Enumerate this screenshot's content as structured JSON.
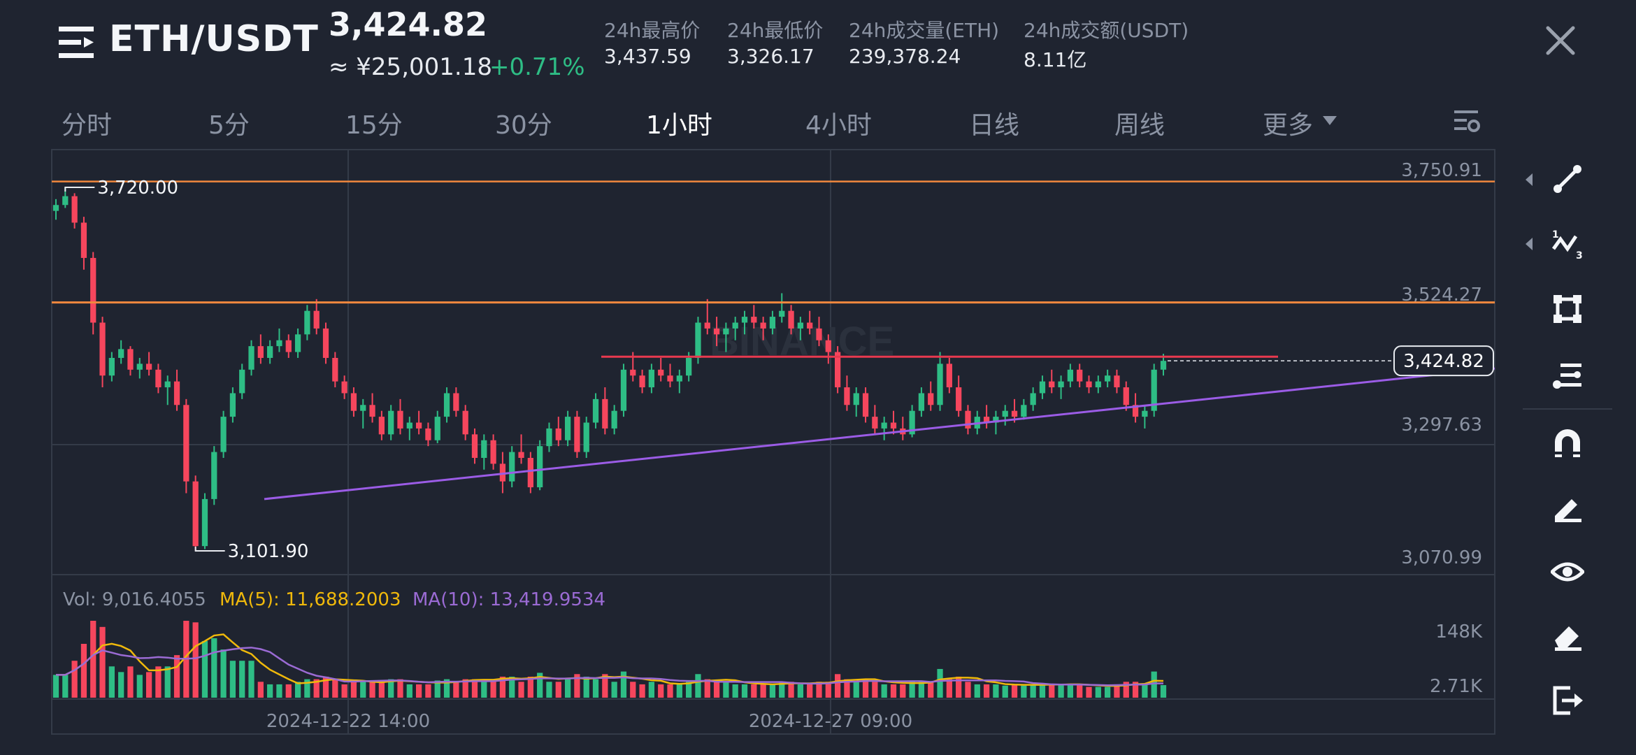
{
  "header": {
    "pair": "ETH/USDT",
    "last_price": "3,424.82",
    "cny_price": "≈ ¥25,001.18",
    "change_pct": "+0.71%",
    "stats": [
      {
        "label": "24h最高价",
        "value": "3,437.59"
      },
      {
        "label": "24h最低价",
        "value": "3,326.17"
      },
      {
        "label": "24h成交量(ETH)",
        "value": "239,378.24"
      },
      {
        "label": "24h成交额(USDT)",
        "value": "8.11亿"
      }
    ]
  },
  "tabs": [
    {
      "label": "分时",
      "active": false
    },
    {
      "label": "5分",
      "active": false
    },
    {
      "label": "15分",
      "active": false
    },
    {
      "label": "30分",
      "active": false
    },
    {
      "label": "1小时",
      "active": true
    },
    {
      "label": "4小时",
      "active": false
    },
    {
      "label": "日线",
      "active": false
    },
    {
      "label": "周线",
      "active": false
    },
    {
      "label": "更多",
      "active": false
    }
  ],
  "watermark": "BINANCE",
  "colors": {
    "background": "#1f2430",
    "up": "#2ebd85",
    "down": "#f6465d",
    "hline": "#f0883e",
    "trendline": "#9b5ce6",
    "resistance": "#e8394f",
    "ma5": "#f0b90b",
    "ma10": "#9b6bd4"
  },
  "chart_data": {
    "type": "candlestick",
    "price_axis_labels": [
      "3,750.91",
      "3,524.27",
      "3,297.63",
      "3,070.99"
    ],
    "current_price_label": "3,424.82",
    "max_label": "3,720.00",
    "min_label": "3,101.90",
    "horizontal_lines": [
      3730,
      3524.27
    ],
    "resistance_level": 3432,
    "trendline": {
      "start_price": 3190,
      "end_price": 3412
    },
    "date_labels": [
      "2024-12-22 14:00",
      "2024-12-27 09:00"
    ],
    "candles": [
      [
        3680,
        3700,
        3665,
        3690
      ],
      [
        3690,
        3720,
        3685,
        3705
      ],
      [
        3705,
        3710,
        3650,
        3660
      ],
      [
        3660,
        3670,
        3580,
        3600
      ],
      [
        3600,
        3610,
        3470,
        3490
      ],
      [
        3490,
        3500,
        3380,
        3400
      ],
      [
        3400,
        3440,
        3390,
        3430
      ],
      [
        3430,
        3460,
        3420,
        3445
      ],
      [
        3445,
        3450,
        3400,
        3410
      ],
      [
        3410,
        3430,
        3395,
        3420
      ],
      [
        3420,
        3440,
        3400,
        3410
      ],
      [
        3410,
        3420,
        3370,
        3380
      ],
      [
        3380,
        3400,
        3350,
        3390
      ],
      [
        3390,
        3410,
        3340,
        3350
      ],
      [
        3350,
        3360,
        3200,
        3220
      ],
      [
        3220,
        3230,
        3101.9,
        3110
      ],
      [
        3110,
        3200,
        3105,
        3190
      ],
      [
        3190,
        3280,
        3180,
        3270
      ],
      [
        3270,
        3340,
        3260,
        3330
      ],
      [
        3330,
        3380,
        3320,
        3370
      ],
      [
        3370,
        3420,
        3360,
        3410
      ],
      [
        3410,
        3460,
        3400,
        3450
      ],
      [
        3450,
        3470,
        3420,
        3430
      ],
      [
        3430,
        3460,
        3420,
        3450
      ],
      [
        3450,
        3480,
        3440,
        3460
      ],
      [
        3460,
        3470,
        3430,
        3440
      ],
      [
        3440,
        3480,
        3430,
        3470
      ],
      [
        3470,
        3520,
        3460,
        3510
      ],
      [
        3510,
        3530,
        3470,
        3480
      ],
      [
        3480,
        3490,
        3420,
        3430
      ],
      [
        3430,
        3440,
        3380,
        3390
      ],
      [
        3390,
        3400,
        3360,
        3370
      ],
      [
        3370,
        3380,
        3330,
        3340
      ],
      [
        3340,
        3360,
        3310,
        3350
      ],
      [
        3350,
        3370,
        3320,
        3330
      ],
      [
        3330,
        3340,
        3290,
        3300
      ],
      [
        3300,
        3350,
        3290,
        3340
      ],
      [
        3340,
        3360,
        3300,
        3310
      ],
      [
        3310,
        3330,
        3290,
        3320
      ],
      [
        3320,
        3340,
        3300,
        3310
      ],
      [
        3310,
        3320,
        3280,
        3290
      ],
      [
        3290,
        3340,
        3285,
        3330
      ],
      [
        3330,
        3380,
        3320,
        3370
      ],
      [
        3370,
        3380,
        3330,
        3340
      ],
      [
        3340,
        3350,
        3290,
        3300
      ],
      [
        3300,
        3310,
        3250,
        3260
      ],
      [
        3260,
        3300,
        3240,
        3290
      ],
      [
        3290,
        3300,
        3240,
        3250
      ],
      [
        3250,
        3270,
        3200,
        3220
      ],
      [
        3220,
        3280,
        3210,
        3270
      ],
      [
        3270,
        3300,
        3250,
        3260
      ],
      [
        3260,
        3270,
        3200,
        3210
      ],
      [
        3210,
        3290,
        3205,
        3280
      ],
      [
        3280,
        3320,
        3270,
        3310
      ],
      [
        3310,
        3330,
        3280,
        3290
      ],
      [
        3290,
        3340,
        3280,
        3330
      ],
      [
        3330,
        3340,
        3260,
        3270
      ],
      [
        3270,
        3330,
        3260,
        3320
      ],
      [
        3320,
        3370,
        3310,
        3360
      ],
      [
        3360,
        3380,
        3300,
        3310
      ],
      [
        3310,
        3350,
        3300,
        3340
      ],
      [
        3340,
        3420,
        3330,
        3410
      ],
      [
        3410,
        3440,
        3390,
        3400
      ],
      [
        3400,
        3410,
        3370,
        3380
      ],
      [
        3380,
        3420,
        3370,
        3410
      ],
      [
        3410,
        3430,
        3390,
        3400
      ],
      [
        3400,
        3420,
        3380,
        3390
      ],
      [
        3390,
        3410,
        3370,
        3400
      ],
      [
        3400,
        3440,
        3390,
        3430
      ],
      [
        3430,
        3500,
        3420,
        3490
      ],
      [
        3490,
        3530,
        3470,
        3480
      ],
      [
        3480,
        3500,
        3450,
        3470
      ],
      [
        3470,
        3490,
        3440,
        3480
      ],
      [
        3480,
        3500,
        3460,
        3490
      ],
      [
        3490,
        3510,
        3470,
        3500
      ],
      [
        3500,
        3520,
        3480,
        3490
      ],
      [
        3490,
        3500,
        3460,
        3480
      ],
      [
        3480,
        3510,
        3470,
        3500
      ],
      [
        3500,
        3540,
        3490,
        3510
      ],
      [
        3510,
        3520,
        3470,
        3480
      ],
      [
        3480,
        3500,
        3460,
        3490
      ],
      [
        3490,
        3510,
        3470,
        3480
      ],
      [
        3480,
        3500,
        3450,
        3460
      ],
      [
        3460,
        3470,
        3420,
        3440
      ],
      [
        3440,
        3450,
        3370,
        3380
      ],
      [
        3380,
        3400,
        3340,
        3350
      ],
      [
        3350,
        3380,
        3330,
        3370
      ],
      [
        3370,
        3380,
        3320,
        3330
      ],
      [
        3330,
        3350,
        3300,
        3310
      ],
      [
        3310,
        3330,
        3290,
        3320
      ],
      [
        3320,
        3340,
        3300,
        3310
      ],
      [
        3310,
        3330,
        3290,
        3300
      ],
      [
        3300,
        3350,
        3295,
        3340
      ],
      [
        3340,
        3380,
        3330,
        3370
      ],
      [
        3370,
        3390,
        3340,
        3350
      ],
      [
        3350,
        3440,
        3340,
        3420
      ],
      [
        3420,
        3430,
        3370,
        3380
      ],
      [
        3380,
        3400,
        3330,
        3340
      ],
      [
        3340,
        3350,
        3300,
        3310
      ],
      [
        3310,
        3340,
        3300,
        3330
      ],
      [
        3330,
        3350,
        3310,
        3320
      ],
      [
        3320,
        3340,
        3300,
        3330
      ],
      [
        3330,
        3350,
        3315,
        3340
      ],
      [
        3340,
        3360,
        3320,
        3330
      ],
      [
        3330,
        3360,
        3325,
        3350
      ],
      [
        3350,
        3380,
        3340,
        3370
      ],
      [
        3370,
        3400,
        3360,
        3390
      ],
      [
        3390,
        3410,
        3370,
        3380
      ],
      [
        3380,
        3400,
        3360,
        3390
      ],
      [
        3390,
        3420,
        3380,
        3410
      ],
      [
        3410,
        3420,
        3380,
        3390
      ],
      [
        3390,
        3400,
        3370,
        3380
      ],
      [
        3380,
        3400,
        3370,
        3390
      ],
      [
        3390,
        3410,
        3380,
        3400
      ],
      [
        3400,
        3410,
        3370,
        3380
      ],
      [
        3380,
        3390,
        3340,
        3350
      ],
      [
        3350,
        3370,
        3320,
        3330
      ],
      [
        3330,
        3350,
        3310,
        3340
      ],
      [
        3340,
        3420,
        3330,
        3410
      ],
      [
        3410,
        3437,
        3400,
        3425
      ]
    ],
    "volume_panel": {
      "vol_label": "Vol: 9,016.4055",
      "ma5_label": "MA(5): 11,688.2003",
      "ma10_label": "MA(10): 13,419.9534",
      "axis_labels": [
        "148K",
        "2.71K"
      ]
    }
  },
  "toolbar": {
    "tools": [
      "line-tool-icon",
      "wave-tool-icon",
      "shape-tool-icon",
      "fib-tool-icon",
      "magnet-icon",
      "pencil-icon",
      "eye-icon",
      "eraser-icon",
      "exit-icon"
    ]
  }
}
